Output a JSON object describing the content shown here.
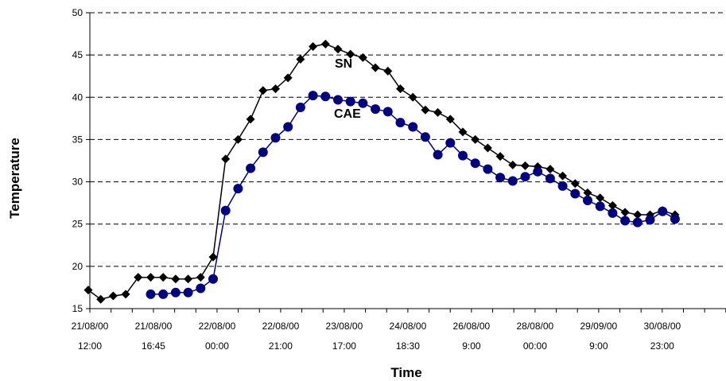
{
  "chart_data": {
    "type": "line",
    "title": "",
    "xlabel": "Time",
    "ylabel": "Temperature",
    "ylim": [
      15,
      50
    ],
    "yticks": [
      "15",
      "20",
      "25",
      "30",
      "35",
      "40",
      "45",
      "50"
    ],
    "grid": "horizontal-dashed",
    "x_tick_labels": [
      {
        "date": "21/08/00",
        "time": "12:00"
      },
      {
        "date": "21/08/00",
        "time": "16:45"
      },
      {
        "date": "22/08/00",
        "time": "00:00"
      },
      {
        "date": "22/08/00",
        "time": "21:00"
      },
      {
        "date": "23/08/00",
        "time": "17:00"
      },
      {
        "date": "24/08/00",
        "time": "18:30"
      },
      {
        "date": "26/08/00",
        "time": "9:00"
      },
      {
        "date": "28/08/00",
        "time": "00:00"
      },
      {
        "date": "29/09/00",
        "time": "9:00"
      },
      {
        "date": "30/08/00",
        "time": "23:00"
      }
    ],
    "series": [
      {
        "name": "SN",
        "color": "#000000",
        "marker": "diamond",
        "values": [
          17.2,
          16.1,
          16.5,
          16.7,
          18.7,
          18.7,
          18.7,
          18.5,
          18.5,
          18.7,
          21.1,
          32.7,
          35.0,
          37.4,
          40.8,
          41.0,
          42.3,
          44.5,
          46.0,
          46.3,
          45.7,
          45.1,
          44.7,
          43.5,
          43.1,
          41.0,
          40.0,
          38.5,
          38.2,
          37.4,
          35.9,
          35.0,
          34.0,
          33.0,
          32.0,
          31.9,
          31.8,
          31.5,
          30.7,
          29.8,
          28.7,
          28.1,
          27.2,
          26.4,
          26.1,
          26.1,
          26.6,
          26.1
        ]
      },
      {
        "name": "CAE",
        "color": "#000080",
        "marker": "circle",
        "values": [
          null,
          null,
          null,
          null,
          null,
          16.7,
          16.7,
          16.9,
          16.9,
          17.4,
          18.5,
          26.6,
          29.2,
          31.6,
          33.5,
          35.2,
          36.5,
          38.8,
          40.2,
          40.1,
          39.7,
          39.5,
          39.3,
          38.6,
          38.3,
          37.0,
          36.5,
          35.3,
          33.2,
          34.6,
          33.1,
          32.2,
          31.5,
          30.5,
          30.1,
          30.6,
          31.2,
          30.4,
          29.5,
          28.6,
          27.8,
          27.1,
          26.3,
          25.4,
          25.2,
          25.5,
          26.5,
          25.6
        ]
      }
    ]
  }
}
